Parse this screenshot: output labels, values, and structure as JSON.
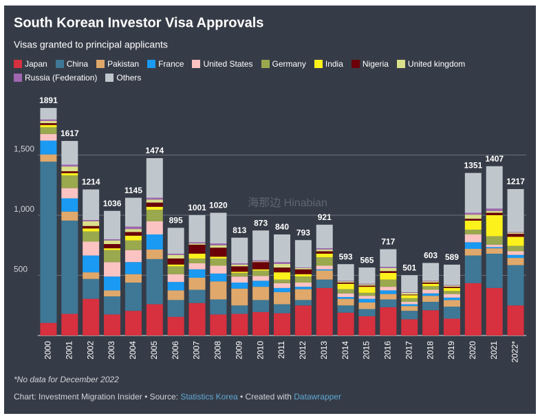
{
  "chart_data": {
    "type": "stacked_bar",
    "title": "South Korean Investor Visa Approvals",
    "subtitle": "Visas granted to principal applicants",
    "note": "*No data for December 2022",
    "footer": {
      "credit": "Chart: Investment Migration Insider • Source: ",
      "source": "Statistics Korea",
      "created": " • Created with ",
      "tool": "Datawrapper"
    },
    "watermark": "海那边 Hinabian",
    "categories": [
      "2000",
      "2001",
      "2002",
      "2003",
      "2004",
      "2005",
      "2006",
      "2007",
      "2008",
      "2009",
      "2010",
      "2011",
      "2012",
      "2013",
      "2014",
      "2015",
      "2016",
      "2017",
      "2018",
      "2019",
      "2020",
      "2021",
      "2022*"
    ],
    "totals": [
      1891,
      1617,
      1214,
      1036,
      1145,
      1474,
      895,
      1001,
      1020,
      813,
      873,
      840,
      793,
      921,
      593,
      565,
      717,
      501,
      603,
      589,
      1351,
      1407,
      1217
    ],
    "ylim": [
      0,
      2000
    ],
    "yticks": [
      {
        "value": 500,
        "label": "500"
      },
      {
        "value": 1000,
        "label": "1,000"
      },
      {
        "value": 1500,
        "label": "1,500"
      }
    ],
    "grid": true,
    "series": [
      {
        "name": "Japan",
        "color": "#d7303e",
        "values": [
          105,
          180,
          305,
          175,
          205,
          260,
          155,
          270,
          175,
          180,
          195,
          185,
          250,
          395,
          190,
          160,
          235,
          135,
          210,
          140,
          435,
          395,
          250
        ]
      },
      {
        "name": "China",
        "color": "#3e7896",
        "values": [
          1340,
          775,
          165,
          150,
          235,
          375,
          140,
          110,
          125,
          70,
          100,
          75,
          45,
          70,
          60,
          60,
          65,
          70,
          70,
          100,
          230,
          285,
          335
        ]
      },
      {
        "name": "Pakistan",
        "color": "#e0a86b",
        "values": [
          60,
          75,
          55,
          50,
          70,
          80,
          80,
          100,
          150,
          140,
          110,
          100,
          90,
          75,
          55,
          55,
          45,
          40,
          50,
          55,
          55,
          45,
          60
        ]
      },
      {
        "name": "France",
        "color": "#1a9af2",
        "values": [
          115,
          110,
          140,
          115,
          100,
          125,
          70,
          70,
          65,
          50,
          50,
          35,
          20,
          10,
          15,
          30,
          30,
          15,
          20,
          20,
          55,
          10,
          25
        ]
      },
      {
        "name": "United States",
        "color": "#fcc3c3",
        "values": [
          55,
          85,
          115,
          120,
          100,
          110,
          65,
          50,
          65,
          50,
          40,
          40,
          35,
          30,
          30,
          25,
          30,
          20,
          30,
          30,
          65,
          20,
          30
        ]
      },
      {
        "name": "Germany",
        "color": "#9aa84e",
        "values": [
          55,
          105,
          85,
          100,
          80,
          95,
          65,
          40,
          60,
          30,
          45,
          30,
          50,
          70,
          35,
          25,
          60,
          30,
          30,
          25,
          40,
          70,
          45
        ]
      },
      {
        "name": "India",
        "color": "#fdf11c",
        "values": [
          20,
          20,
          25,
          15,
          40,
          25,
          15,
          40,
          15,
          10,
          10,
          60,
          20,
          30,
          45,
          50,
          55,
          25,
          20,
          25,
          75,
          175,
          75
        ]
      },
      {
        "name": "Nigeria",
        "color": "#6b0008",
        "values": [
          15,
          15,
          20,
          35,
          30,
          35,
          50,
          75,
          75,
          45,
          60,
          40,
          40,
          20,
          10,
          10,
          15,
          5,
          10,
          10,
          15,
          20,
          25
        ]
      },
      {
        "name": "United kingdom",
        "color": "#dbe08a",
        "values": [
          18,
          40,
          40,
          30,
          25,
          25,
          30,
          10,
          20,
          15,
          5,
          30,
          10,
          15,
          10,
          10,
          25,
          15,
          10,
          10,
          35,
          15,
          10
        ]
      },
      {
        "name": "Russia (Federation)",
        "color": "#a066b0",
        "values": [
          12,
          15,
          10,
          10,
          20,
          15,
          10,
          10,
          15,
          10,
          10,
          15,
          5,
          10,
          5,
          5,
          10,
          5,
          5,
          5,
          15,
          20,
          5
        ]
      },
      {
        "name": "Others",
        "color": "#c0c7cc",
        "values": [
          96,
          197,
          254,
          236,
          240,
          329,
          215,
          226,
          255,
          213,
          248,
          230,
          228,
          196,
          138,
          135,
          147,
          141,
          148,
          169,
          331,
          352,
          357
        ]
      }
    ]
  }
}
